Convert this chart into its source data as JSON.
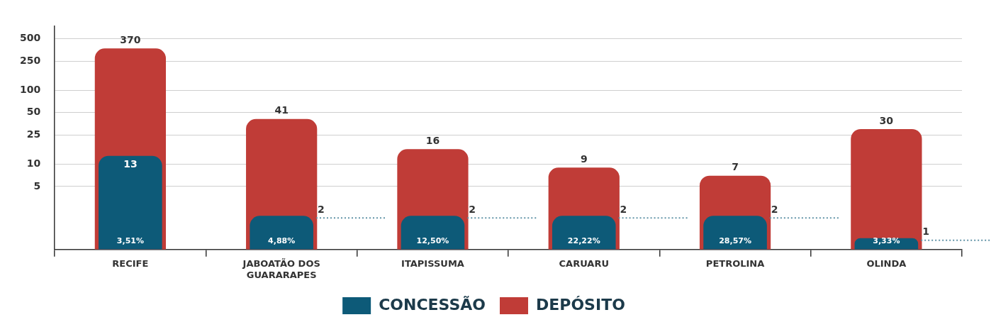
{
  "chart_data": {
    "type": "bar",
    "categories": [
      "RECIFE",
      "JABOATÃO DOS GUARARAPES",
      "ITAPISSUMA",
      "CARUARU",
      "PETROLINA",
      "OLINDA"
    ],
    "series": [
      {
        "name": "CONCESSÃO",
        "color": "#0d5a78",
        "values": [
          13,
          2,
          2,
          2,
          2,
          1
        ]
      },
      {
        "name": "DEPÓSITO",
        "color": "#c03c37",
        "values": [
          370,
          41,
          16,
          9,
          7,
          30
        ]
      }
    ],
    "log": true,
    "ylim": [
      0.7,
      750
    ],
    "yticks": [
      5,
      10,
      25,
      50,
      100,
      250,
      500
    ],
    "grid": "y",
    "legend": "bottom",
    "data_labels": true,
    "annotations": [
      "3,51%",
      "4,88%",
      "12,50%",
      "22,22%",
      "28,57%",
      "3,33%"
    ]
  }
}
